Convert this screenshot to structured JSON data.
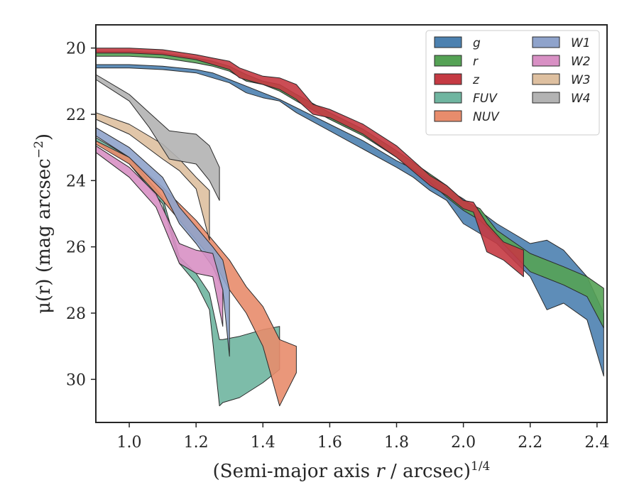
{
  "chart_data": {
    "type": "area",
    "xlabel": "(Semi-major axis r / arcsec)",
    "xlabel_italic_part": "r",
    "xlabel_superscript": "1/4",
    "ylabel": "μ(r) (mag arcsec",
    "ylabel_superscript": "−2",
    "ylabel_close": ")",
    "xlim": [
      0.9,
      2.43
    ],
    "ylim": [
      31.3,
      19.3
    ],
    "y_inverted": true,
    "xticks": [
      1.0,
      1.2,
      1.4,
      1.6,
      1.8,
      2.0,
      2.2,
      2.4
    ],
    "xtick_labels": [
      "1.0",
      "1.2",
      "1.4",
      "1.6",
      "1.8",
      "2.0",
      "2.2",
      "2.4"
    ],
    "yticks": [
      20,
      22,
      24,
      26,
      28,
      30
    ],
    "ytick_labels": [
      "20",
      "22",
      "24",
      "26",
      "28",
      "30"
    ],
    "grid": false,
    "legend_position": "top-right",
    "legend_columns": 2,
    "series": [
      {
        "name": "g",
        "color": "#4c81b0",
        "x": [
          0.9,
          1.0,
          1.1,
          1.2,
          1.25,
          1.3,
          1.35,
          1.4,
          1.45,
          1.5,
          1.6,
          1.7,
          1.8,
          1.85,
          1.9,
          1.95,
          2.0,
          2.1,
          2.2,
          2.25,
          2.3,
          2.37,
          2.42
        ],
        "y_low": [
          20.5,
          20.5,
          20.55,
          20.65,
          20.75,
          20.95,
          21.15,
          21.35,
          21.55,
          21.8,
          22.3,
          22.8,
          23.4,
          23.65,
          23.95,
          24.25,
          24.55,
          25.3,
          25.9,
          25.8,
          26.1,
          26.9,
          28.0
        ],
        "y_high": [
          20.6,
          20.6,
          20.65,
          20.75,
          20.9,
          21.05,
          21.35,
          21.5,
          21.6,
          21.95,
          22.5,
          23.05,
          23.6,
          23.9,
          24.3,
          24.6,
          25.3,
          25.9,
          26.9,
          27.9,
          27.7,
          28.2,
          29.9
        ]
      },
      {
        "name": "r",
        "color": "#55a255",
        "x": [
          0.9,
          1.0,
          1.1,
          1.2,
          1.25,
          1.3,
          1.35,
          1.4,
          1.45,
          1.5,
          1.6,
          1.7,
          1.8,
          1.9,
          1.95,
          2.0,
          2.05,
          2.1,
          2.2,
          2.3,
          2.37,
          2.42
        ],
        "y_low": [
          20.1,
          20.1,
          20.15,
          20.3,
          20.4,
          20.55,
          20.8,
          21.0,
          21.1,
          21.4,
          21.95,
          22.45,
          23.1,
          23.8,
          24.15,
          24.6,
          24.85,
          25.5,
          26.2,
          26.6,
          26.9,
          27.25
        ],
        "y_high": [
          20.25,
          20.25,
          20.3,
          20.45,
          20.55,
          20.7,
          21.0,
          21.1,
          21.3,
          21.6,
          22.15,
          22.65,
          23.3,
          24.05,
          24.5,
          24.9,
          25.2,
          25.7,
          26.75,
          27.15,
          27.5,
          28.45
        ]
      },
      {
        "name": "z",
        "color": "#c53a43",
        "x": [
          0.9,
          1.0,
          1.1,
          1.2,
          1.25,
          1.3,
          1.33,
          1.4,
          1.45,
          1.5,
          1.55,
          1.6,
          1.7,
          1.8,
          1.9,
          1.95,
          2.0,
          2.03,
          2.07,
          2.12,
          2.18
        ],
        "y_low": [
          20.0,
          20.0,
          20.05,
          20.2,
          20.3,
          20.4,
          20.6,
          20.85,
          20.9,
          21.1,
          21.7,
          21.85,
          22.3,
          22.95,
          23.85,
          24.15,
          24.6,
          24.65,
          25.3,
          25.85,
          26.1
        ],
        "y_high": [
          20.15,
          20.15,
          20.2,
          20.35,
          20.5,
          20.65,
          20.9,
          21.1,
          21.25,
          21.55,
          22.0,
          22.1,
          22.6,
          23.3,
          24.15,
          24.45,
          24.85,
          24.95,
          26.15,
          26.4,
          26.9
        ]
      },
      {
        "name": "FUV",
        "color": "#6fb5a0",
        "x": [
          0.9,
          1.0,
          1.1,
          1.15,
          1.2,
          1.22,
          1.24,
          1.27,
          1.28,
          1.33,
          1.4,
          1.45
        ],
        "y_low": [
          22.7,
          23.3,
          24.5,
          26.3,
          26.8,
          27.1,
          27.4,
          28.8,
          28.8,
          28.7,
          28.5,
          28.4
        ],
        "y_high": [
          22.8,
          23.5,
          24.7,
          26.5,
          27.1,
          27.5,
          27.9,
          30.8,
          30.7,
          30.55,
          30.1,
          29.7
        ]
      },
      {
        "name": "NUV",
        "color": "#e88c6c",
        "x": [
          0.9,
          1.0,
          1.1,
          1.2,
          1.25,
          1.3,
          1.35,
          1.4,
          1.45,
          1.5
        ],
        "y_low": [
          22.8,
          23.3,
          24.2,
          25.2,
          25.8,
          26.4,
          27.2,
          27.8,
          28.8,
          29.0
        ],
        "y_high": [
          22.9,
          23.5,
          24.6,
          25.8,
          26.4,
          27.3,
          28.0,
          29.0,
          30.8,
          29.8
        ]
      },
      {
        "name": "W1",
        "color": "#8fa3cb",
        "x": [
          0.9,
          1.0,
          1.1,
          1.15,
          1.2,
          1.25,
          1.28,
          1.3
        ],
        "y_low": [
          22.4,
          23.0,
          23.9,
          24.8,
          25.4,
          26.0,
          26.4,
          27.3
        ],
        "y_high": [
          22.65,
          23.3,
          24.3,
          25.3,
          25.9,
          26.6,
          27.3,
          29.3
        ]
      },
      {
        "name": "W2",
        "color": "#d890c4",
        "x": [
          0.9,
          1.0,
          1.08,
          1.15,
          1.2,
          1.25,
          1.28
        ],
        "y_low": [
          22.95,
          23.6,
          24.4,
          25.9,
          26.1,
          26.2,
          27.3
        ],
        "y_high": [
          23.15,
          23.9,
          24.8,
          26.5,
          26.8,
          26.9,
          28.4
        ]
      },
      {
        "name": "W3",
        "color": "#dec0a0",
        "x": [
          0.9,
          1.0,
          1.1,
          1.15,
          1.2,
          1.24
        ],
        "y_low": [
          21.95,
          22.3,
          22.9,
          23.35,
          23.9,
          24.3
        ],
        "y_high": [
          22.15,
          22.6,
          23.35,
          23.7,
          24.25,
          25.8
        ]
      },
      {
        "name": "W4",
        "color": "#b3b3b3",
        "x": [
          0.9,
          1.0,
          1.06,
          1.12,
          1.2,
          1.24,
          1.27
        ],
        "y_low": [
          20.8,
          21.4,
          21.95,
          22.5,
          22.6,
          22.95,
          23.6
        ],
        "y_high": [
          20.95,
          21.6,
          22.4,
          23.35,
          23.5,
          24.0,
          24.6
        ]
      }
    ]
  }
}
